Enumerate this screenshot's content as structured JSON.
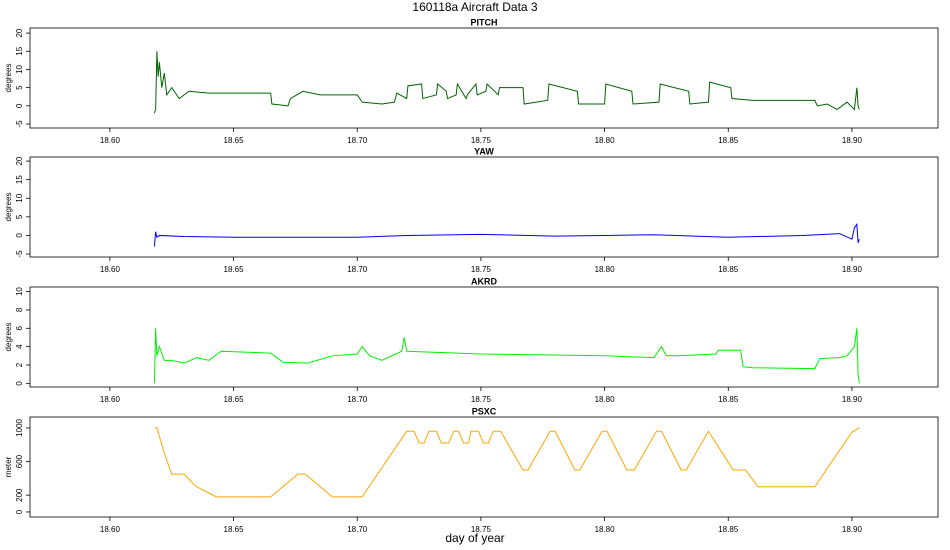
{
  "title": "160118a   Aircraft Data 3",
  "xlabel": "day of year",
  "chart_data": [
    {
      "type": "line",
      "title": "PITCH",
      "ylabel": "degrees",
      "color": "#006400",
      "xlim": [
        18.5677,
        18.9348
      ],
      "ylim": [
        -6.1,
        21.4
      ],
      "yticks": [
        -5,
        0,
        5,
        10,
        15,
        20
      ],
      "xticks": [
        {
          "value": 18.6,
          "label": "18.60"
        },
        {
          "value": 18.65,
          "label": "18.65"
        },
        {
          "value": 18.7,
          "label": "18.70"
        },
        {
          "value": 18.75,
          "label": "18.75"
        },
        {
          "value": 18.8,
          "label": "18.80"
        },
        {
          "value": 18.85,
          "label": "18.85"
        },
        {
          "value": 18.9,
          "label": "18.90"
        }
      ],
      "x": [
        18.618,
        18.6185,
        18.619,
        18.6195,
        18.62,
        18.621,
        18.622,
        18.623,
        18.625,
        18.628,
        18.632,
        18.64,
        18.665,
        18.6655,
        18.672,
        18.673,
        18.678,
        18.685,
        18.7,
        18.702,
        18.71,
        18.715,
        18.716,
        18.72,
        18.7205,
        18.726,
        18.7265,
        18.732,
        18.7325,
        18.736,
        18.7365,
        18.74,
        18.7405,
        18.744,
        18.7445,
        18.748,
        18.7485,
        18.752,
        18.7525,
        18.757,
        18.7575,
        18.767,
        18.7675,
        18.777,
        18.7775,
        18.789,
        18.7895,
        18.8,
        18.8005,
        18.811,
        18.8115,
        18.822,
        18.8225,
        18.834,
        18.8345,
        18.842,
        18.8425,
        18.851,
        18.8515,
        18.86,
        18.885,
        18.886,
        18.89,
        18.894,
        18.898,
        18.901,
        18.902,
        18.9025,
        18.903
      ],
      "values": [
        -2,
        -1,
        15,
        8,
        12,
        5,
        9,
        3,
        5,
        2,
        4,
        3.5,
        3.5,
        0.5,
        0,
        2,
        4,
        3,
        3,
        1,
        0.5,
        1,
        3.5,
        2,
        5.5,
        6,
        2,
        3,
        6,
        4,
        2,
        3,
        6,
        2,
        3,
        6,
        3,
        4,
        6,
        3,
        5,
        5,
        0.5,
        1.5,
        6,
        4,
        0.5,
        0.5,
        6,
        4,
        0.5,
        1,
        6,
        4,
        0.5,
        1,
        6.5,
        5,
        2,
        1.5,
        1.5,
        0,
        0.5,
        -1,
        1,
        -1,
        5,
        0,
        -1
      ]
    },
    {
      "type": "line",
      "title": "YAW",
      "ylabel": "degrees",
      "color": "#0000ff",
      "xlim": [
        18.5677,
        18.9348
      ],
      "ylim": [
        -5.8,
        21.1
      ],
      "yticks": [
        -5,
        0,
        5,
        10,
        15,
        20
      ],
      "xticks": [
        {
          "value": 18.6,
          "label": "18.60"
        },
        {
          "value": 18.65,
          "label": "18.65"
        },
        {
          "value": 18.7,
          "label": "18.70"
        },
        {
          "value": 18.75,
          "label": "18.75"
        },
        {
          "value": 18.8,
          "label": "18.80"
        },
        {
          "value": 18.85,
          "label": "18.85"
        },
        {
          "value": 18.9,
          "label": "18.90"
        }
      ],
      "x": [
        18.618,
        18.6185,
        18.619,
        18.62,
        18.63,
        18.65,
        18.7,
        18.72,
        18.75,
        18.78,
        18.8,
        18.82,
        18.85,
        18.88,
        18.895,
        18.9,
        18.901,
        18.902,
        18.9025,
        18.903
      ],
      "values": [
        -3,
        1,
        -0.5,
        0,
        -0.3,
        -0.5,
        -0.5,
        0,
        0.3,
        -0.2,
        0,
        0.2,
        -0.5,
        0,
        0.5,
        -1,
        2,
        3,
        -2,
        -1
      ]
    },
    {
      "type": "line",
      "title": "AKRD",
      "ylabel": "degrees",
      "color": "#00ee00",
      "xlim": [
        18.5677,
        18.9348
      ],
      "ylim": [
        -0.4,
        10.5
      ],
      "yticks": [
        0,
        2,
        4,
        6,
        8,
        10
      ],
      "xticks": [
        {
          "value": 18.6,
          "label": "18.60"
        },
        {
          "value": 18.65,
          "label": "18.65"
        },
        {
          "value": 18.7,
          "label": "18.70"
        },
        {
          "value": 18.75,
          "label": "18.75"
        },
        {
          "value": 18.8,
          "label": "18.80"
        },
        {
          "value": 18.85,
          "label": "18.85"
        },
        {
          "value": 18.9,
          "label": "18.90"
        }
      ],
      "x": [
        18.618,
        18.6185,
        18.619,
        18.62,
        18.622,
        18.625,
        18.63,
        18.635,
        18.64,
        18.645,
        18.665,
        18.67,
        18.68,
        18.69,
        18.7,
        18.702,
        18.705,
        18.71,
        18.718,
        18.719,
        18.72,
        18.75,
        18.8,
        18.82,
        18.823,
        18.825,
        18.83,
        18.845,
        18.846,
        18.855,
        18.856,
        18.86,
        18.885,
        18.887,
        18.895,
        18.898,
        18.901,
        18.902,
        18.9025,
        18.903
      ],
      "values": [
        0,
        6,
        3,
        4,
        2.5,
        2.5,
        2.2,
        2.8,
        2.5,
        3.5,
        3.3,
        2.3,
        2.2,
        3,
        3.2,
        4,
        3,
        2.5,
        3.5,
        5,
        3.5,
        3.2,
        3,
        2.8,
        4,
        3,
        3,
        3.2,
        3.6,
        3.6,
        1.8,
        1.7,
        1.6,
        2.7,
        2.8,
        3,
        4,
        6,
        1,
        0
      ]
    },
    {
      "type": "line",
      "title": "PSXC",
      "ylabel": "meter",
      "color": "#ffa500",
      "xlim": [
        18.5677,
        18.9348
      ],
      "ylim": [
        -60,
        1130
      ],
      "yticks": [
        0,
        200,
        600,
        1000
      ],
      "xticks": [
        {
          "value": 18.6,
          "label": "18.60"
        },
        {
          "value": 18.65,
          "label": "18.65"
        },
        {
          "value": 18.7,
          "label": "18.70"
        },
        {
          "value": 18.75,
          "label": "18.75"
        },
        {
          "value": 18.8,
          "label": "18.80"
        },
        {
          "value": 18.85,
          "label": "18.85"
        },
        {
          "value": 18.9,
          "label": "18.90"
        }
      ],
      "x": [
        18.618,
        18.619,
        18.622,
        18.625,
        18.63,
        18.635,
        18.643,
        18.665,
        18.676,
        18.679,
        18.69,
        18.702,
        18.72,
        18.723,
        18.725,
        18.727,
        18.729,
        18.732,
        18.734,
        18.737,
        18.739,
        18.741,
        18.743,
        18.745,
        18.746,
        18.749,
        18.751,
        18.753,
        18.755,
        18.758,
        18.767,
        18.769,
        18.778,
        18.78,
        18.788,
        18.79,
        18.799,
        18.801,
        18.809,
        18.812,
        18.821,
        18.823,
        18.831,
        18.833,
        18.842,
        18.852,
        18.857,
        18.862,
        18.885,
        18.9,
        18.903
      ],
      "values": [
        1000,
        1000,
        700,
        450,
        450,
        300,
        180,
        180,
        450,
        450,
        180,
        180,
        960,
        960,
        820,
        820,
        960,
        960,
        820,
        820,
        960,
        960,
        820,
        820,
        960,
        960,
        820,
        820,
        960,
        960,
        500,
        500,
        960,
        960,
        500,
        500,
        960,
        960,
        500,
        500,
        960,
        960,
        500,
        500,
        960,
        500,
        500,
        300,
        300,
        950,
        1000
      ]
    }
  ]
}
